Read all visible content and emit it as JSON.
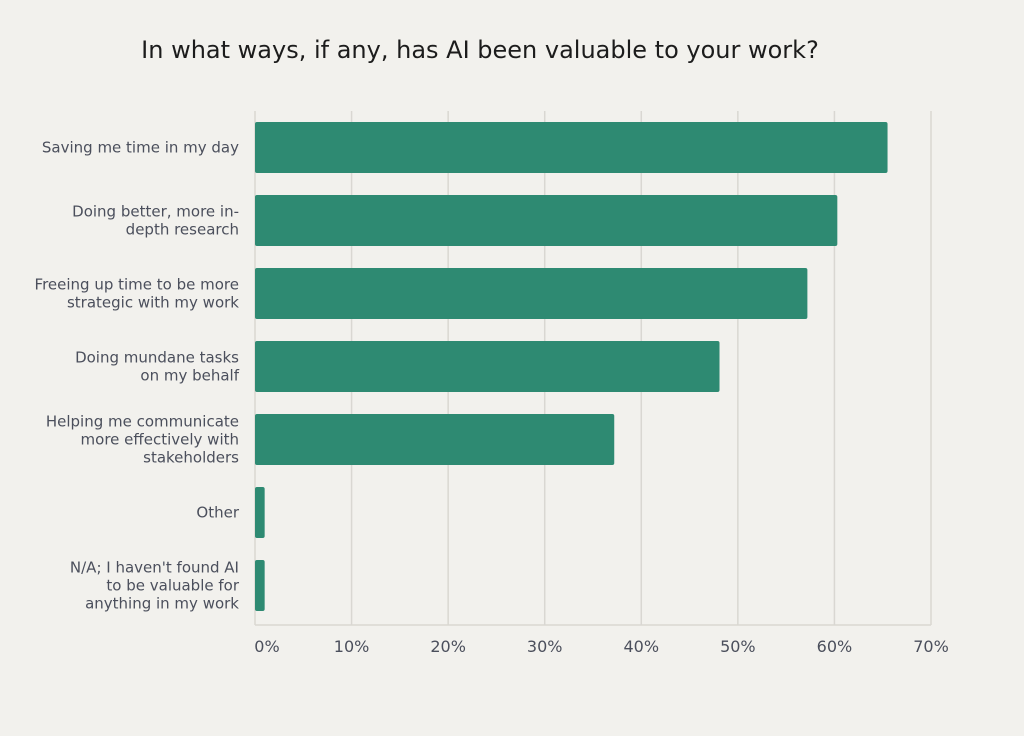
{
  "chart_data": {
    "type": "bar",
    "orientation": "horizontal",
    "title": "In what ways, if any, has AI been valuable to your work?",
    "categories": [
      [
        "Saving me time in my day"
      ],
      [
        "Doing better, more in-",
        "depth research"
      ],
      [
        "Freeing up time to be more",
        "strategic with my work"
      ],
      [
        "Doing mundane tasks",
        "on my behalf"
      ],
      [
        "Helping me communicate",
        "more effectively with",
        "stakeholders"
      ],
      [
        "Other"
      ],
      [
        "N/A; I haven't found AI",
        "to be valuable for",
        "anything in my work"
      ]
    ],
    "values": [
      65.5,
      60.3,
      57.2,
      48.1,
      37.2,
      1.0,
      1.0
    ],
    "xlim": [
      0,
      70
    ],
    "ticks": [
      0,
      10,
      20,
      30,
      40,
      50,
      60,
      70
    ],
    "tick_labels": [
      "0%",
      "10%",
      "20%",
      "30%",
      "40%",
      "50%",
      "60%",
      "70%"
    ],
    "grid": true,
    "bar_color": "#2e8a72",
    "grid_color": "#d9d7d2"
  }
}
